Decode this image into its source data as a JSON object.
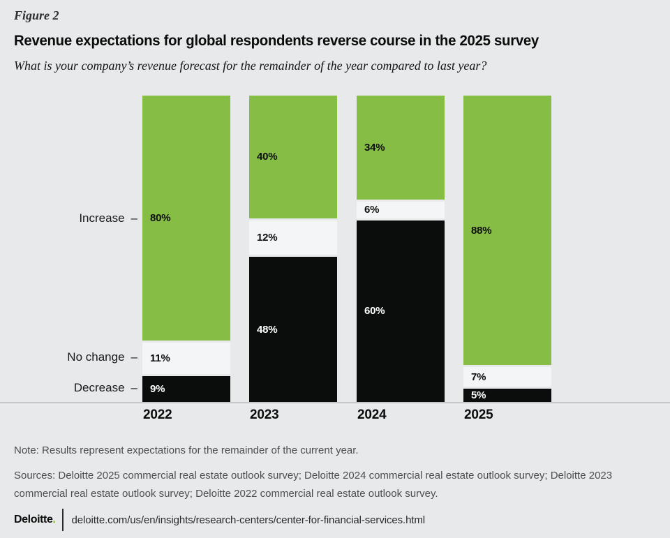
{
  "figure_label": "Figure 2",
  "title": "Revenue expectations for global respondents reverse course in the 2025 survey",
  "subtitle": "What is your company’s revenue forecast for the remainder of the year compared to last year?",
  "chart_data": {
    "type": "bar",
    "stacked": true,
    "orientation": "vertical",
    "categories": [
      "2022",
      "2023",
      "2024",
      "2025"
    ],
    "series": [
      {
        "name": "Increase",
        "color": "#86bd45",
        "label_color": "#0d0e0e",
        "texture": "solid",
        "values": [
          80,
          40,
          34,
          88
        ]
      },
      {
        "name": "No change",
        "color": "#f4f5f6",
        "label_color": "#0d0e0e",
        "texture": "dotted",
        "values": [
          11,
          12,
          6,
          7
        ]
      },
      {
        "name": "Decrease",
        "color": "#0b0d0d",
        "label_color": "#ffffff",
        "texture": "solid",
        "values": [
          9,
          48,
          60,
          5
        ]
      }
    ],
    "value_suffix": "%",
    "axis_tick_char": "–",
    "ylim": [
      0,
      100
    ],
    "grid": false,
    "legend_position": "none",
    "value_labels": "inside-left"
  },
  "note": "Note: Results represent expectations for the remainder of the current year.",
  "sources": "Sources: Deloitte 2025 commercial real estate outlook survey; Deloitte 2024 commercial real estate outlook survey; Deloitte 2023 commercial real estate outlook survey; Deloitte 2022 commercial real estate outlook survey.",
  "footer": {
    "brand": "Deloitte",
    "brand_dot": ".",
    "url": "deloitte.com/us/en/insights/research-centers/center-for-financial-services.html"
  },
  "colors": {
    "page_background": "#e8e9ea",
    "axis_line": "#c5c7c8",
    "brand_green": "#86bc25"
  }
}
